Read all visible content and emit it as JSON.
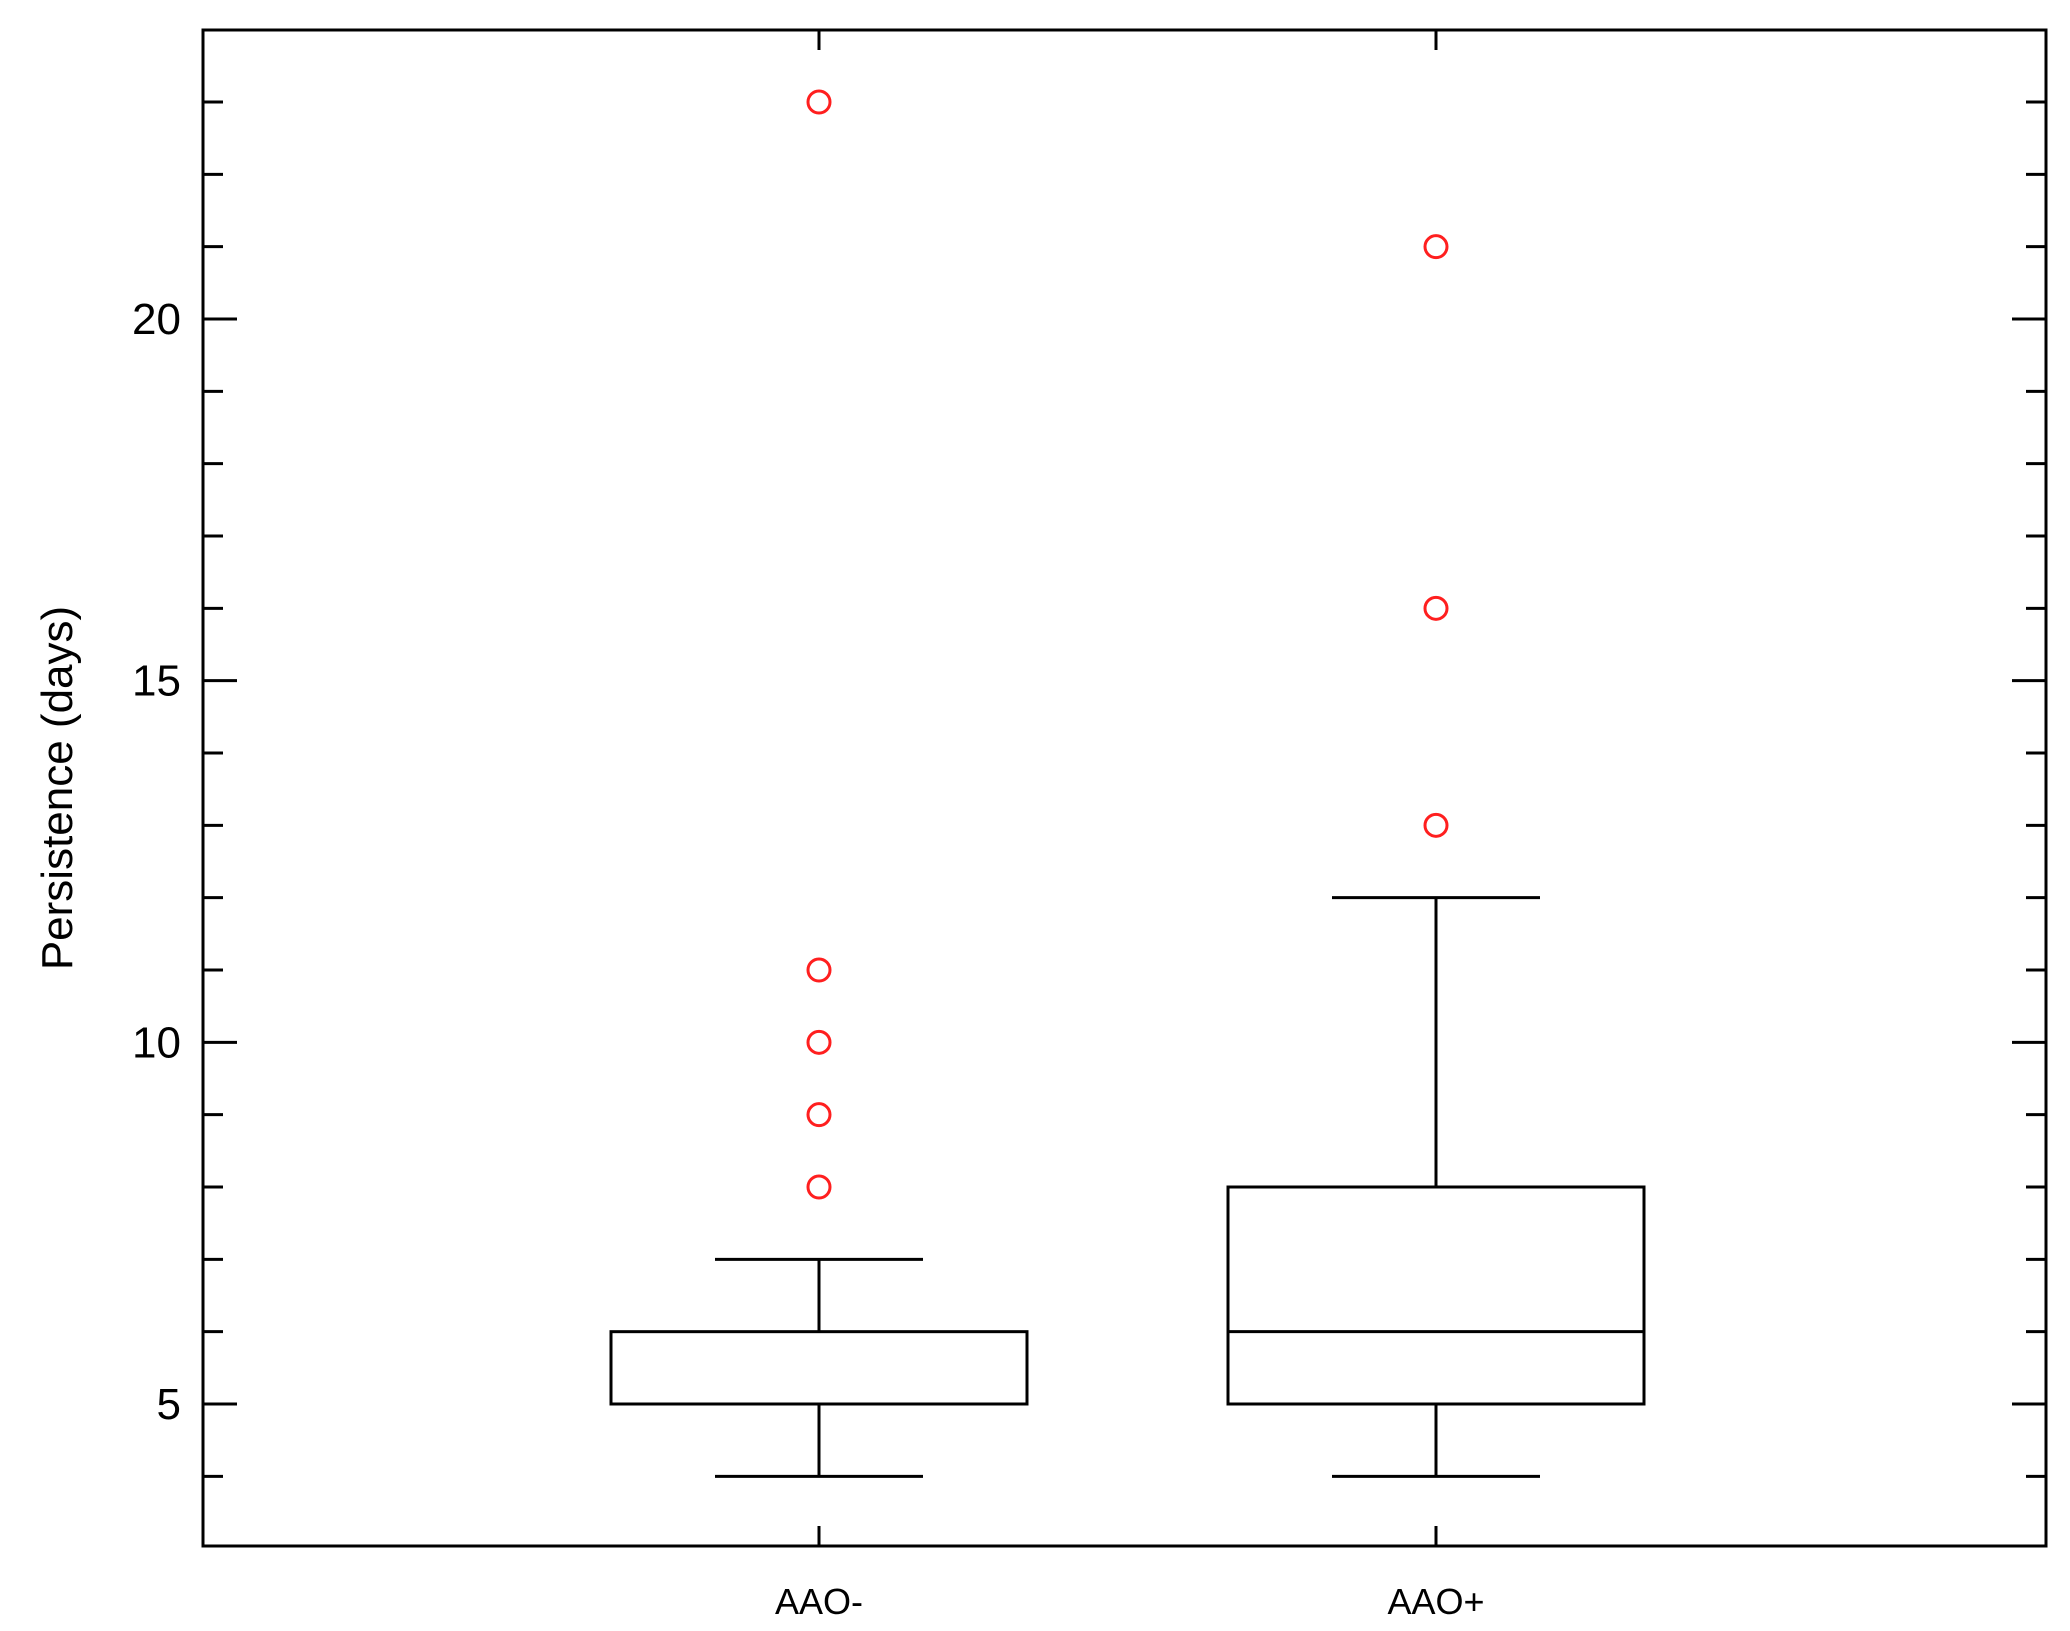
{
  "chart_data": {
    "type": "box",
    "title": "",
    "xlabel": "",
    "ylabel": "Persistence (days)",
    "ylim": [
      3,
      24
    ],
    "yticks_major": [
      5,
      10,
      15,
      20
    ],
    "yticks_minor_step": 1,
    "categories": [
      "AAO-",
      "AAO+"
    ],
    "boxes": [
      {
        "category": "AAO-",
        "whisker_low": 4,
        "q1": 5,
        "median": 5,
        "q3": 6,
        "whisker_high": 7,
        "outliers": [
          8,
          9,
          10,
          11,
          23
        ]
      },
      {
        "category": "AAO+",
        "whisker_low": 4,
        "q1": 5,
        "median": 6,
        "q3": 8,
        "whisker_high": 12,
        "outliers": [
          13,
          16,
          21
        ]
      }
    ],
    "grid": false,
    "colors": {
      "box": "#000000",
      "outlier": "#ff1f1f"
    }
  }
}
